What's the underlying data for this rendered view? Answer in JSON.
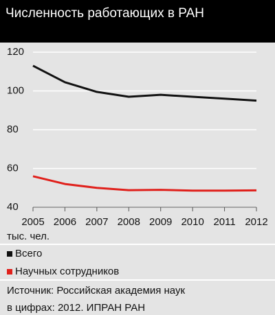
{
  "chart_data": {
    "type": "line",
    "title": "Численность работающих в РАН",
    "categories": [
      "2005",
      "2006",
      "2007",
      "2008",
      "2009",
      "2010",
      "2011",
      "2012"
    ],
    "series": [
      {
        "name": "Всего",
        "color": "#111111",
        "values": [
          113,
          104.5,
          99.5,
          97,
          98,
          97,
          96,
          95
        ]
      },
      {
        "name": "Научных сотрудников",
        "color": "#e0201b",
        "values": [
          56,
          52,
          50,
          48.8,
          49,
          48.6,
          48.6,
          48.7
        ]
      }
    ],
    "ylim": [
      40,
      120
    ],
    "yticks": [
      40,
      60,
      80,
      100,
      120
    ],
    "grid": true,
    "unit_label": "тыс. чел.",
    "source": [
      "Источник: Российская академия наук",
      "в цифрах: 2012. ИПРАН РАН"
    ]
  }
}
